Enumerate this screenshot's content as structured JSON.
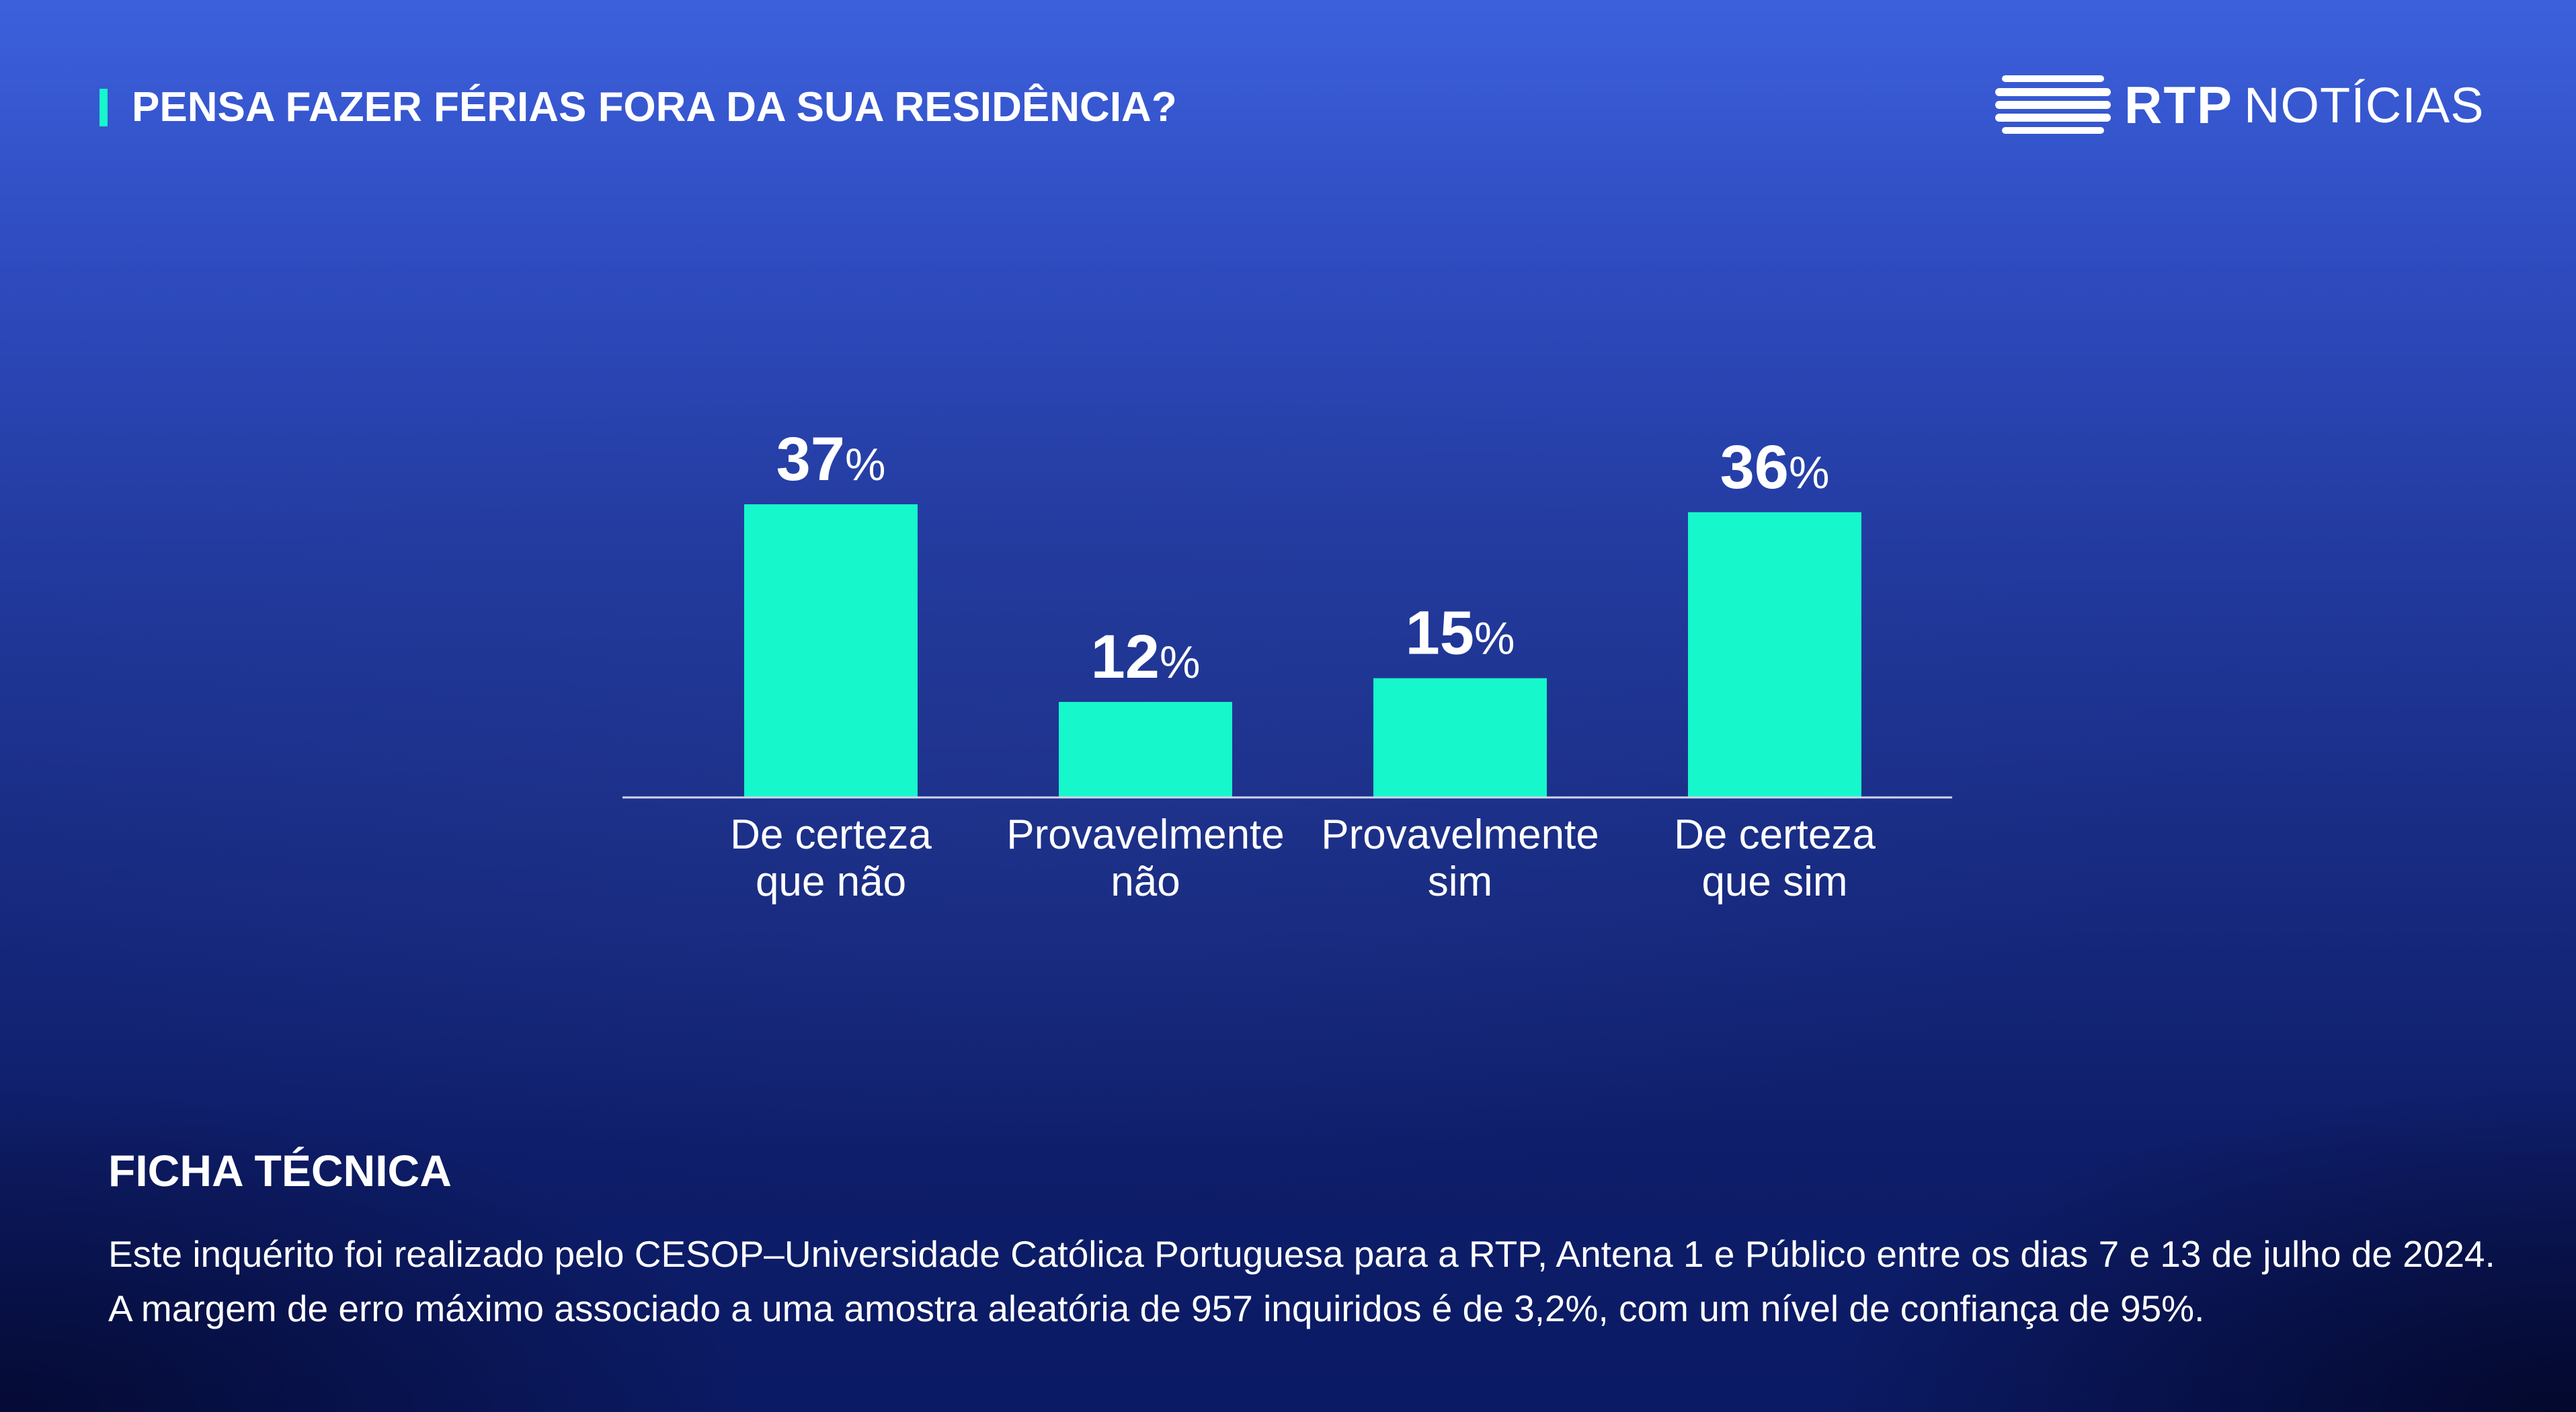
{
  "header": {
    "title": "PENSA FAZER FÉRIAS FORA DA SUA RESIDÊNCIA?",
    "accent_color": "#17f7cc"
  },
  "logo": {
    "brand": "RTP",
    "section": "NOTÍCIAS"
  },
  "chart_data": {
    "type": "bar",
    "categories": [
      [
        "De certeza",
        "que não"
      ],
      [
        "Provavelmente",
        "não"
      ],
      [
        "Provavelmente",
        "sim"
      ],
      [
        "De certeza",
        "que sim"
      ]
    ],
    "values": [
      37,
      12,
      15,
      36
    ],
    "value_labels": [
      "37",
      "12",
      "15",
      "36"
    ],
    "unit": "%",
    "bar_color": "#17f7cc",
    "ylim": [
      0,
      37
    ],
    "grid": false,
    "title": "",
    "xlabel": "",
    "ylabel": ""
  },
  "footer": {
    "title": "FICHA TÉCNICA",
    "body": "Este inquérito foi realizado pelo CESOP–Universidade Católica Portuguesa para a RTP, Antena 1 e Público  entre os dias 7 e 13 de julho de 2024. A margem de erro máximo associado a uma amostra aleatória de 957 inquiridos é de 3,2%, com um nível de confiança de 95%."
  }
}
